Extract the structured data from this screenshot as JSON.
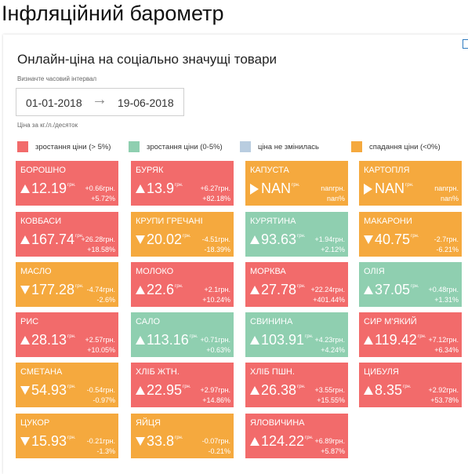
{
  "page_title": "Інфляційний барометр",
  "widget": {
    "title": "Онлайн-ціна на соціально значущі товари",
    "interval_label": "Визначте часовий інтервал",
    "date_from": "01-01-2018",
    "date_arrow": "→",
    "date_to": "19-06-2018",
    "unit_note": "Ціна за кг./л./десяток"
  },
  "legend": [
    {
      "label": "зростання ціни (> 5%)",
      "color": "#f26b6b"
    },
    {
      "label": "зростання ціни (0-5%)",
      "color": "#8fcfb0"
    },
    {
      "label": "ціна не змінилась",
      "color": "#b9cde0"
    },
    {
      "label": "спадання ціни (<0%)",
      "color": "#f5a93e"
    }
  ],
  "colors": {
    "red": "#f26b6b",
    "green": "#8fcfb0",
    "blue": "#b9cde0",
    "orange": "#f5a93e"
  },
  "unit": "грн.",
  "products": [
    {
      "name": "Борошно",
      "price": "12.19",
      "abs": "+0.66грн.",
      "pct": "+5.72%",
      "trend": "up",
      "status": "red"
    },
    {
      "name": "Буряк",
      "price": "13.9",
      "abs": "+6.27грн.",
      "pct": "+82.18%",
      "trend": "up",
      "status": "red"
    },
    {
      "name": "Капуста",
      "price": "NAN",
      "abs": "nanгрн.",
      "pct": "nan%",
      "trend": "flat",
      "status": "orange"
    },
    {
      "name": "Картопля",
      "price": "NAN",
      "abs": "nanгрн.",
      "pct": "nan%",
      "trend": "flat",
      "status": "orange"
    },
    {
      "name": "Ковбаси",
      "price": "167.74",
      "abs": "+26.28грн.",
      "pct": "+18.58%",
      "trend": "up",
      "status": "red"
    },
    {
      "name": "Крупи гречані",
      "price": "20.02",
      "abs": "-4.51грн.",
      "pct": "-18.39%",
      "trend": "down",
      "status": "orange"
    },
    {
      "name": "Курятина",
      "price": "93.63",
      "abs": "+1.94грн.",
      "pct": "+2.12%",
      "trend": "up",
      "status": "green"
    },
    {
      "name": "Макарони",
      "price": "40.75",
      "abs": "-2.7грн.",
      "pct": "-6.21%",
      "trend": "down",
      "status": "orange"
    },
    {
      "name": "Масло",
      "price": "177.28",
      "abs": "-4.74грн.",
      "pct": "-2.6%",
      "trend": "down",
      "status": "orange"
    },
    {
      "name": "Молоко",
      "price": "22.6",
      "abs": "+2.1грн.",
      "pct": "+10.24%",
      "trend": "up",
      "status": "red"
    },
    {
      "name": "Морква",
      "price": "27.78",
      "abs": "+22.24грн.",
      "pct": "+401.44%",
      "trend": "up",
      "status": "red"
    },
    {
      "name": "Олія",
      "price": "37.05",
      "abs": "+0.48грн.",
      "pct": "+1.31%",
      "trend": "up",
      "status": "green"
    },
    {
      "name": "Рис",
      "price": "28.13",
      "abs": "+2.57грн.",
      "pct": "+10.05%",
      "trend": "up",
      "status": "red"
    },
    {
      "name": "Сало",
      "price": "113.16",
      "abs": "+0.71грн.",
      "pct": "+0.63%",
      "trend": "up",
      "status": "green"
    },
    {
      "name": "Свинина",
      "price": "103.91",
      "abs": "+4.23грн.",
      "pct": "+4.24%",
      "trend": "up",
      "status": "green"
    },
    {
      "name": "Сир м'який",
      "price": "119.42",
      "abs": "+7.12грн.",
      "pct": "+6.34%",
      "trend": "up",
      "status": "red"
    },
    {
      "name": "Сметана",
      "price": "54.93",
      "abs": "-0.54грн.",
      "pct": "-0.97%",
      "trend": "down",
      "status": "orange"
    },
    {
      "name": "Хліб жтн.",
      "price": "22.95",
      "abs": "+2.97грн.",
      "pct": "+14.86%",
      "trend": "up",
      "status": "red"
    },
    {
      "name": "Хліб пшн.",
      "price": "26.38",
      "abs": "+3.55грн.",
      "pct": "+15.55%",
      "trend": "up",
      "status": "red"
    },
    {
      "name": "Цибуля",
      "price": "8.35",
      "abs": "+2.92грн.",
      "pct": "+53.78%",
      "trend": "up",
      "status": "red"
    },
    {
      "name": "Цукор",
      "price": "15.93",
      "abs": "-0.21грн.",
      "pct": "-1.3%",
      "trend": "down",
      "status": "orange"
    },
    {
      "name": "Яйця",
      "price": "33.8",
      "abs": "-0.07грн.",
      "pct": "-0.21%",
      "trend": "down",
      "status": "orange"
    },
    {
      "name": "Яловичина",
      "price": "124.22",
      "abs": "+6.89грн.",
      "pct": "+5.87%",
      "trend": "up",
      "status": "red"
    }
  ]
}
